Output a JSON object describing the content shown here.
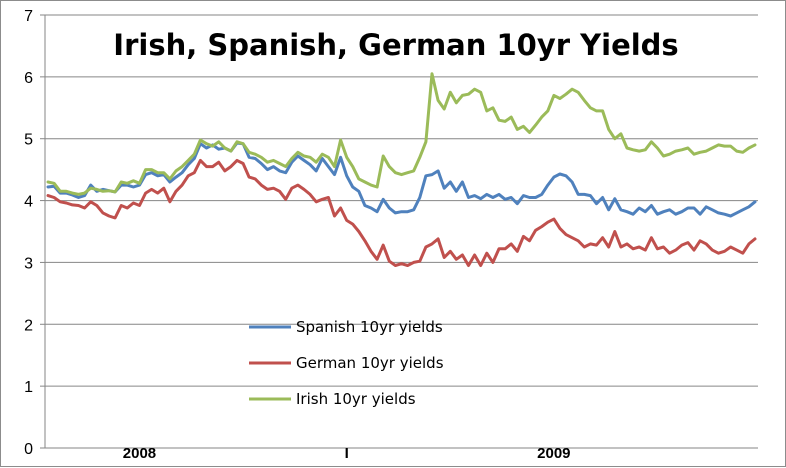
{
  "chart_data": {
    "type": "line",
    "title": "Irish, Spanish, German 10yr Yields",
    "xlabel": "",
    "ylabel": "",
    "ylim": [
      0,
      7
    ],
    "yticks": [
      "0",
      "1",
      "2",
      "3",
      "4",
      "5",
      "6",
      "7"
    ],
    "grid": true,
    "legend_position": "bottom-center",
    "x_category_labels": [
      {
        "label": "2008",
        "at": 15
      },
      {
        "label": "I",
        "at": 49
      },
      {
        "label": "2009",
        "at": 83
      }
    ],
    "series": [
      {
        "name": "Spanish 10yr yields",
        "color": "#4f81bd",
        "values": [
          4.22,
          4.23,
          4.12,
          4.12,
          4.09,
          4.05,
          4.08,
          4.25,
          4.15,
          4.18,
          4.16,
          4.14,
          4.25,
          4.25,
          4.22,
          4.25,
          4.42,
          4.45,
          4.4,
          4.42,
          4.3,
          4.38,
          4.45,
          4.58,
          4.68,
          4.92,
          4.85,
          4.9,
          4.83,
          4.85,
          4.8,
          4.93,
          4.92,
          4.7,
          4.68,
          4.6,
          4.5,
          4.55,
          4.48,
          4.45,
          4.62,
          4.72,
          4.65,
          4.58,
          4.48,
          4.68,
          4.55,
          4.42,
          4.7,
          4.4,
          4.22,
          4.15,
          3.92,
          3.88,
          3.82,
          4.02,
          3.88,
          3.8,
          3.82,
          3.82,
          3.85,
          4.05,
          4.4,
          4.42,
          4.48,
          4.2,
          4.3,
          4.15,
          4.3,
          4.05,
          4.08,
          4.03,
          4.1,
          4.05,
          4.1,
          4.02,
          4.05,
          3.95,
          4.08,
          4.05,
          4.05,
          4.1,
          4.25,
          4.38,
          4.43,
          4.4,
          4.3,
          4.1,
          4.1,
          4.08,
          3.95,
          4.05,
          3.85,
          4.03,
          3.85,
          3.82,
          3.78,
          3.88,
          3.82,
          3.92,
          3.78,
          3.82,
          3.85,
          3.78,
          3.82,
          3.88,
          3.88,
          3.78,
          3.9,
          3.85,
          3.8,
          3.78,
          3.75,
          3.8,
          3.85,
          3.9,
          3.98
        ]
      },
      {
        "name": "German 10yr yields",
        "color": "#c0504d",
        "values": [
          4.08,
          4.05,
          3.98,
          3.96,
          3.93,
          3.92,
          3.88,
          3.98,
          3.92,
          3.8,
          3.75,
          3.72,
          3.92,
          3.88,
          3.96,
          3.92,
          4.12,
          4.18,
          4.12,
          4.2,
          3.98,
          4.15,
          4.25,
          4.4,
          4.45,
          4.65,
          4.55,
          4.55,
          4.62,
          4.48,
          4.55,
          4.65,
          4.6,
          4.38,
          4.35,
          4.25,
          4.18,
          4.2,
          4.15,
          4.02,
          4.2,
          4.25,
          4.18,
          4.1,
          3.98,
          4.02,
          4.05,
          3.75,
          3.88,
          3.68,
          3.62,
          3.5,
          3.35,
          3.18,
          3.05,
          3.28,
          3.02,
          2.95,
          2.98,
          2.95,
          3.0,
          3.02,
          3.25,
          3.3,
          3.38,
          3.08,
          3.18,
          3.05,
          3.12,
          2.95,
          3.12,
          2.95,
          3.15,
          3.0,
          3.22,
          3.22,
          3.3,
          3.18,
          3.42,
          3.35,
          3.52,
          3.58,
          3.65,
          3.7,
          3.55,
          3.45,
          3.4,
          3.35,
          3.25,
          3.3,
          3.28,
          3.4,
          3.25,
          3.5,
          3.25,
          3.3,
          3.22,
          3.25,
          3.2,
          3.4,
          3.22,
          3.25,
          3.15,
          3.2,
          3.28,
          3.32,
          3.2,
          3.35,
          3.3,
          3.2,
          3.15,
          3.18,
          3.25,
          3.2,
          3.15,
          3.3,
          3.38
        ]
      },
      {
        "name": "Irish 10yr yields",
        "color": "#9bbb59",
        "values": [
          4.3,
          4.28,
          4.15,
          4.15,
          4.12,
          4.1,
          4.12,
          4.2,
          4.18,
          4.15,
          4.16,
          4.14,
          4.3,
          4.28,
          4.32,
          4.28,
          4.5,
          4.5,
          4.45,
          4.45,
          4.35,
          4.48,
          4.55,
          4.65,
          4.75,
          4.98,
          4.92,
          4.88,
          4.95,
          4.85,
          4.8,
          4.95,
          4.92,
          4.78,
          4.75,
          4.7,
          4.62,
          4.65,
          4.6,
          4.55,
          4.68,
          4.78,
          4.72,
          4.7,
          4.62,
          4.75,
          4.7,
          4.55,
          4.98,
          4.7,
          4.55,
          4.35,
          4.3,
          4.25,
          4.22,
          4.72,
          4.55,
          4.45,
          4.42,
          4.45,
          4.48,
          4.7,
          4.95,
          6.05,
          5.62,
          5.48,
          5.75,
          5.58,
          5.7,
          5.72,
          5.8,
          5.75,
          5.45,
          5.5,
          5.3,
          5.28,
          5.35,
          5.15,
          5.2,
          5.1,
          5.22,
          5.35,
          5.45,
          5.7,
          5.65,
          5.72,
          5.8,
          5.75,
          5.62,
          5.5,
          5.45,
          5.45,
          5.15,
          5.0,
          5.08,
          4.85,
          4.82,
          4.8,
          4.82,
          4.95,
          4.85,
          4.72,
          4.75,
          4.8,
          4.82,
          4.85,
          4.75,
          4.78,
          4.8,
          4.85,
          4.9,
          4.88,
          4.88,
          4.8,
          4.78,
          4.85,
          4.9
        ]
      }
    ]
  }
}
